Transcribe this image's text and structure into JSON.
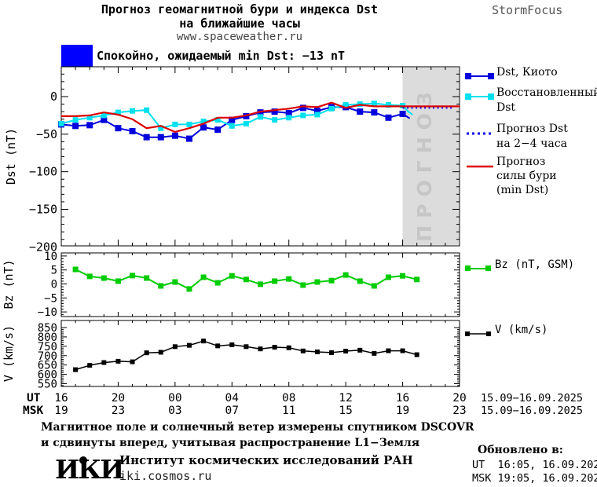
{
  "header": {
    "title_line1": "Прогноз геомагнитной бури и индекса Dst",
    "title_line2": "на ближайшие часы",
    "website": "www.spaceweather.ru",
    "brand": "StormFocus"
  },
  "status": {
    "label": "Спокойно, ожидаемый min Dst: −13 nT",
    "color": "#0000ff"
  },
  "forecast_band": {
    "label": "ПРОГНОЗ"
  },
  "legend": {
    "dst_kyoto": "Dst, Киото",
    "restored_line1": "Восстановленный",
    "restored_line2": "Dst",
    "forecast_line1": "Прогноз Dst",
    "forecast_line2": "на 2−4 часа",
    "storm_line1": "Прогноз",
    "storm_line2": "силы бури",
    "storm_line3": "(min Dst)",
    "bz": "Bz (nT, GSM)",
    "v": "V (km/s)"
  },
  "axis": {
    "dst_title": "Dst (nT)",
    "bz_title": "Bz (nT)",
    "v_title": "V (km/s)",
    "ut_label": "UT",
    "msk_label": "MSK",
    "ut_hours": [
      "16",
      "20",
      "00",
      "04",
      "08",
      "12",
      "16",
      "20"
    ],
    "msk_hours": [
      "19",
      "23",
      "03",
      "07",
      "11",
      "15",
      "19",
      "23"
    ],
    "ut_date": "15.09−16.09.2025",
    "msk_date": "15.09−16.09.2025"
  },
  "footer": {
    "note_line1": "Магнитное поле и солнечный ветер измерены спутником DSCOVR",
    "note_line2": "и сдвинуты вперед, учитывая распространение L1−Земля",
    "logo": "ИКИ",
    "institute": "Институт космических исследований РАН",
    "institute_site": "iki.cosmos.ru",
    "updated_label": "Обновлено в:",
    "updated_ut": "UT  16:05, 16.09.2025",
    "updated_msk": "MSK 19:05, 16.09.2025"
  },
  "colors": {
    "dst_kyoto": "#0000dd",
    "restored": "#00e0ee",
    "forecast": "#0000ee",
    "storm": "#dd0000",
    "bz": "#00cc00",
    "v": "#000000",
    "band_bg": "#dcdcdc",
    "band_text": "#c6c6c6",
    "status": "#0000ff"
  },
  "chart_data": [
    {
      "type": "line",
      "panel": "dst",
      "ylabel": "Dst (nT)",
      "ylim": [
        -200,
        40
      ],
      "yticks": [
        0,
        -50,
        -100,
        -150,
        -200
      ],
      "x_axis_hours_ut": [
        "16",
        "20",
        "00",
        "04",
        "08",
        "12",
        "16",
        "20"
      ],
      "x_range_hours": [
        0,
        28
      ],
      "forecast_region_start_hour": 24,
      "legend_position": "right",
      "grid": false,
      "series": [
        {
          "name": "Dst, Киото",
          "color": "dst_kyoto",
          "style": "solid",
          "marker": "square",
          "x": [
            0,
            1,
            2,
            3,
            4,
            5,
            6,
            7,
            8,
            9,
            10,
            11,
            12,
            13,
            14,
            15,
            16,
            17,
            18,
            19,
            20,
            21,
            22,
            23,
            24,
            24.5
          ],
          "values": [
            -37,
            -39,
            -38,
            -31,
            -42,
            -46,
            -54,
            -54,
            -52,
            -56,
            -41,
            -44,
            -31,
            -26,
            -21,
            -20,
            -22,
            -15,
            -19,
            -14,
            -14,
            -20,
            -21,
            -28,
            -23,
            -29
          ]
        },
        {
          "name": "Восстановленный Dst",
          "color": "restored",
          "style": "solid",
          "marker": "square",
          "x": [
            0,
            1,
            2,
            3,
            4,
            5,
            6,
            7,
            8,
            9,
            10,
            11,
            12,
            13,
            14,
            15,
            16,
            17,
            18,
            19,
            20,
            21,
            22,
            23,
            24,
            24.4,
            24.7
          ],
          "values": [
            -36,
            -31,
            -28,
            -25,
            -21,
            -19,
            -18,
            -42,
            -37,
            -37,
            -33,
            -31,
            -39,
            -36,
            -27,
            -31,
            -28,
            -25,
            -24,
            -16,
            -11,
            -10,
            -9,
            -11,
            -12,
            -20,
            -24
          ]
        },
        {
          "name": "Прогноз Dst на 2−4 часа",
          "color": "forecast",
          "style": "dotted",
          "marker": "none",
          "x": [
            24,
            27.6
          ],
          "values": [
            -15,
            -15
          ]
        },
        {
          "name": "Прогноз силы бури (min Dst)",
          "color": "storm",
          "style": "solid",
          "marker": "none",
          "x": [
            0,
            1,
            2,
            3,
            4,
            5,
            6,
            7,
            8,
            9,
            10,
            11,
            12,
            13,
            14,
            15,
            16,
            17,
            18,
            19,
            20,
            21,
            22,
            23,
            24,
            25,
            26,
            27,
            28
          ],
          "values": [
            -26,
            -26,
            -25,
            -21,
            -24,
            -30,
            -42,
            -39,
            -47,
            -42,
            -36,
            -28,
            -28,
            -25,
            -20,
            -18,
            -16,
            -13,
            -14,
            -8,
            -15,
            -11,
            -13,
            -13,
            -13,
            -13,
            -13,
            -13,
            -13
          ]
        }
      ]
    },
    {
      "type": "line",
      "panel": "bz",
      "ylabel": "Bz (nT)",
      "ylim": [
        -10,
        10
      ],
      "yticks": [
        10,
        5,
        0,
        -5,
        -10
      ],
      "series": [
        {
          "name": "Bz (nT, GSM)",
          "color": "bz",
          "style": "solid",
          "marker": "square",
          "x": [
            1,
            2,
            3,
            4,
            5,
            6,
            7,
            8,
            9,
            10,
            11,
            12,
            13,
            14,
            15,
            16,
            17,
            18,
            19,
            20,
            21,
            22,
            23,
            24,
            25
          ],
          "values": [
            5.2,
            2.7,
            2.1,
            1.0,
            3.0,
            2.1,
            -0.7,
            0.7,
            -1.8,
            2.4,
            0.4,
            2.9,
            1.6,
            -0.1,
            1.0,
            1.8,
            -0.4,
            0.7,
            1.2,
            3.2,
            1.0,
            -0.7,
            2.4,
            2.9,
            1.6
          ]
        }
      ]
    },
    {
      "type": "line",
      "panel": "v",
      "ylabel": "V (km/s)",
      "ylim": [
        550,
        850
      ],
      "yticks": [
        850,
        800,
        750,
        700,
        650,
        600,
        550
      ],
      "series": [
        {
          "name": "V (km/s)",
          "color": "v",
          "style": "solid",
          "marker": "square",
          "x": [
            1,
            2,
            3,
            4,
            5,
            6,
            7,
            8,
            9,
            10,
            11,
            12,
            13,
            14,
            15,
            16,
            17,
            18,
            19,
            20,
            21,
            22,
            23,
            24,
            25
          ],
          "values": [
            625,
            648,
            663,
            670,
            667,
            715,
            718,
            748,
            755,
            778,
            752,
            758,
            748,
            736,
            745,
            742,
            725,
            720,
            716,
            724,
            729,
            712,
            726,
            726,
            705
          ]
        }
      ]
    }
  ]
}
